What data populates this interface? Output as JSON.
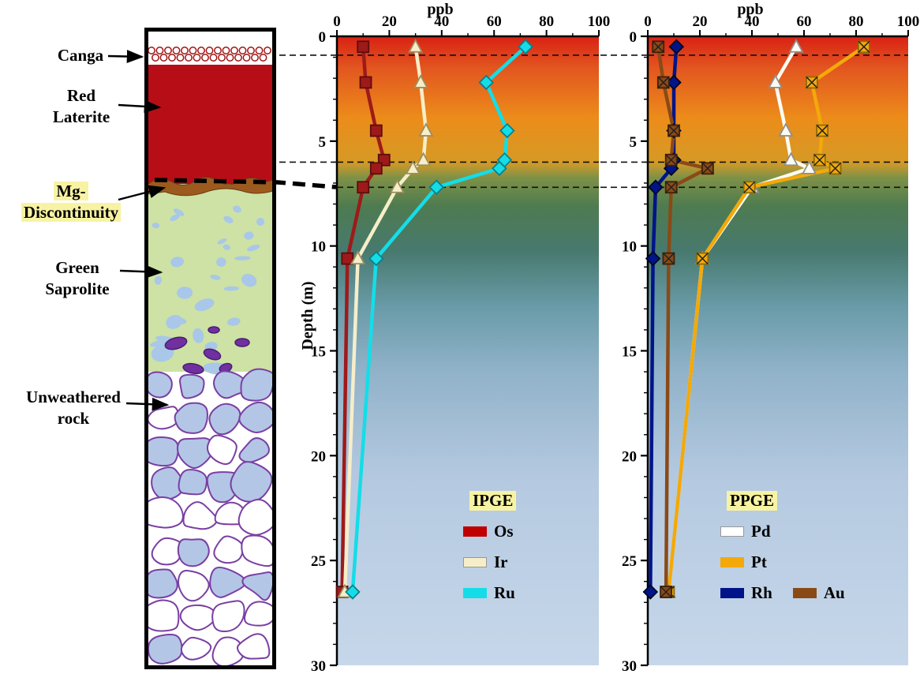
{
  "column": {
    "labels": {
      "canga": "Canga",
      "red_1": "Red",
      "red_2": "Laterite",
      "mg_1": "Mg-",
      "mg_2": "Discontinuity",
      "green_1": "Green",
      "green_2": "Saprolite",
      "unweathered_1": "Unweathered",
      "unweathered_2": "rock"
    },
    "highlight_color": "#f8f3a3",
    "colors": {
      "red": "#b60d17",
      "brown": "#9c5a1e",
      "green": "#cde2a4",
      "blob": "#a9c7e8",
      "purple": "#7030a0",
      "canga_ring": "#a01212",
      "rockFill": "#b3c6e6",
      "rockEdge": "#7a3fa3"
    },
    "layers": [
      {
        "name": "Canga"
      },
      {
        "name": "Red Laterite"
      },
      {
        "name": "Mg-Discontinuity"
      },
      {
        "name": "Green Saprolite"
      },
      {
        "name": "Unweathered rock"
      }
    ]
  },
  "chart_data": [
    {
      "id": "ipge",
      "type": "line",
      "title": "IPGE depth profile",
      "xlabel": "ppb",
      "ylabel": "Depth (m)",
      "xlim": [
        0,
        100
      ],
      "ylim": [
        0,
        30
      ],
      "x_ticks": [
        0,
        20,
        40,
        60,
        80,
        100
      ],
      "y_ticks": [
        0,
        5,
        10,
        15,
        20,
        25,
        30
      ],
      "grid": false,
      "legend_title": "IPGE",
      "legend_rows": [
        [
          "Os"
        ],
        [
          "Ir"
        ],
        [
          "Ru"
        ]
      ],
      "dashed_depths": [
        0.9,
        6.0,
        7.2
      ],
      "depths": [
        0.5,
        2.2,
        4.5,
        5.9,
        6.3,
        7.2,
        10.6,
        26.5
      ],
      "series": [
        {
          "name": "Os",
          "marker": "square",
          "color": "#9e1a1a",
          "swatch": "#c00000",
          "edge": "#5c0d0d",
          "values": [
            10,
            11,
            15,
            18,
            15,
            10,
            4,
            2
          ]
        },
        {
          "name": "Ir",
          "marker": "triangle",
          "color": "#f6eec9",
          "swatch": "#f6eec9",
          "edge": "#9d8d5f",
          "swatch_border": true,
          "values": [
            30,
            32,
            34,
            33,
            29,
            23,
            8,
            3
          ]
        },
        {
          "name": "Ru",
          "marker": "diamond",
          "color": "#14dde8",
          "swatch": "#14dde8",
          "edge": "#0b7f8a",
          "values": [
            72,
            57,
            65,
            64,
            62,
            38,
            15,
            6
          ]
        }
      ],
      "bg_gradient": [
        {
          "at": 0.0,
          "color": "#d92114"
        },
        {
          "at": 0.05,
          "color": "#e2561f"
        },
        {
          "at": 0.13,
          "color": "#ec8c1a"
        },
        {
          "at": 0.2,
          "color": "#d69a25"
        },
        {
          "at": 0.225,
          "color": "#7e9147"
        },
        {
          "at": 0.27,
          "color": "#4e7b50"
        },
        {
          "at": 0.34,
          "color": "#47796e"
        },
        {
          "at": 0.43,
          "color": "#699ba8"
        },
        {
          "at": 0.53,
          "color": "#90b2c9"
        },
        {
          "at": 0.7,
          "color": "#b4c9e0"
        },
        {
          "at": 1.0,
          "color": "#c7d7ea"
        }
      ]
    },
    {
      "id": "ppge",
      "type": "line",
      "title": "PPGE depth profile",
      "xlabel": "ppb",
      "ylabel": "",
      "xlim": [
        0,
        100
      ],
      "ylim": [
        0,
        30
      ],
      "x_ticks": [
        0,
        20,
        40,
        60,
        80,
        100
      ],
      "y_ticks": [
        0,
        5,
        10,
        15,
        20,
        25,
        30
      ],
      "grid": false,
      "legend_title": "PPGE",
      "legend_rows": [
        [
          "Pd"
        ],
        [
          "Pt"
        ],
        [
          "Rh",
          "Au"
        ]
      ],
      "dashed_depths": [
        0.9,
        6.0,
        7.2
      ],
      "depths": [
        0.5,
        2.2,
        4.5,
        5.9,
        6.3,
        7.2,
        10.6,
        26.5
      ],
      "series": [
        {
          "name": "Pd",
          "marker": "triangle",
          "color": "#fbfbf2",
          "swatch": "#ffffff",
          "edge": "#8f8f8f",
          "swatch_border": true,
          "values": [
            57,
            49,
            53,
            55,
            62,
            40,
            21,
            8
          ]
        },
        {
          "name": "Pt",
          "marker": "xsquare",
          "color": "#f3a90a",
          "swatch": "#f3a90a",
          "edge": "#8f6a06",
          "values": [
            83,
            63,
            67,
            66,
            72,
            39,
            21,
            8
          ]
        },
        {
          "name": "Rh",
          "marker": "diamond",
          "color": "#001489",
          "swatch": "#001489",
          "edge": "#00071f",
          "values": [
            11,
            10,
            10,
            10,
            9,
            3,
            2,
            1
          ]
        },
        {
          "name": "Au",
          "marker": "xsquare",
          "color": "#8a4a16",
          "swatch": "#8a4a16",
          "edge": "#402008",
          "values": [
            4,
            6,
            10,
            9,
            23,
            9,
            8,
            7
          ]
        }
      ],
      "bg_gradient": [
        {
          "at": 0.0,
          "color": "#d92114"
        },
        {
          "at": 0.05,
          "color": "#e2561f"
        },
        {
          "at": 0.13,
          "color": "#ec8c1a"
        },
        {
          "at": 0.2,
          "color": "#d69a25"
        },
        {
          "at": 0.225,
          "color": "#7e9147"
        },
        {
          "at": 0.27,
          "color": "#4e7b50"
        },
        {
          "at": 0.34,
          "color": "#47796e"
        },
        {
          "at": 0.43,
          "color": "#699ba8"
        },
        {
          "at": 0.53,
          "color": "#90b2c9"
        },
        {
          "at": 0.7,
          "color": "#b4c9e0"
        },
        {
          "at": 1.0,
          "color": "#c7d7ea"
        }
      ]
    }
  ]
}
